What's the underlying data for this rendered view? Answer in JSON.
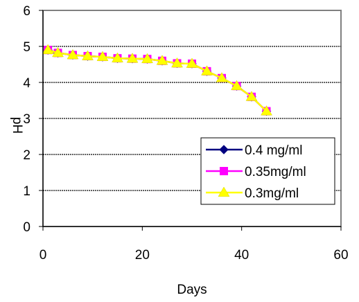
{
  "chart_data": {
    "type": "line",
    "title": "",
    "xlabel": "Days",
    "ylabel": "pH",
    "xlim": [
      0,
      60
    ],
    "ylim": [
      0,
      6
    ],
    "x_ticks": [
      0,
      20,
      40,
      60
    ],
    "y_ticks": [
      0,
      1,
      2,
      3,
      4,
      5,
      6
    ],
    "grid": "horizontal dashed",
    "legend_position": "lower-right",
    "series": [
      {
        "name": "0.4 mg/ml",
        "color": "#000080",
        "marker": "diamond",
        "x": [
          1,
          3,
          6,
          9,
          12,
          15,
          18,
          21,
          24,
          27,
          30,
          33,
          36,
          39,
          42,
          45
        ],
        "y": [
          4.9,
          4.82,
          4.76,
          4.73,
          4.71,
          4.67,
          4.66,
          4.65,
          4.6,
          4.53,
          4.52,
          4.31,
          4.12,
          3.9,
          3.6,
          3.2
        ]
      },
      {
        "name": "0.35mg/ml",
        "color": "#ff00ff",
        "marker": "square",
        "x": [
          1,
          3,
          6,
          9,
          12,
          15,
          18,
          21,
          24,
          27,
          30,
          33,
          36,
          39,
          42,
          45
        ],
        "y": [
          4.9,
          4.82,
          4.76,
          4.73,
          4.71,
          4.67,
          4.66,
          4.65,
          4.6,
          4.53,
          4.52,
          4.31,
          4.12,
          3.9,
          3.6,
          3.2
        ]
      },
      {
        "name": "0.3mg/ml",
        "color": "#ffff00",
        "marker": "triangle",
        "x": [
          1,
          3,
          6,
          9,
          12,
          15,
          18,
          21,
          24,
          27,
          30,
          33,
          36,
          39,
          42,
          45
        ],
        "y": [
          4.9,
          4.82,
          4.76,
          4.73,
          4.71,
          4.67,
          4.66,
          4.65,
          4.6,
          4.53,
          4.52,
          4.31,
          4.12,
          3.9,
          3.6,
          3.2
        ]
      }
    ]
  }
}
